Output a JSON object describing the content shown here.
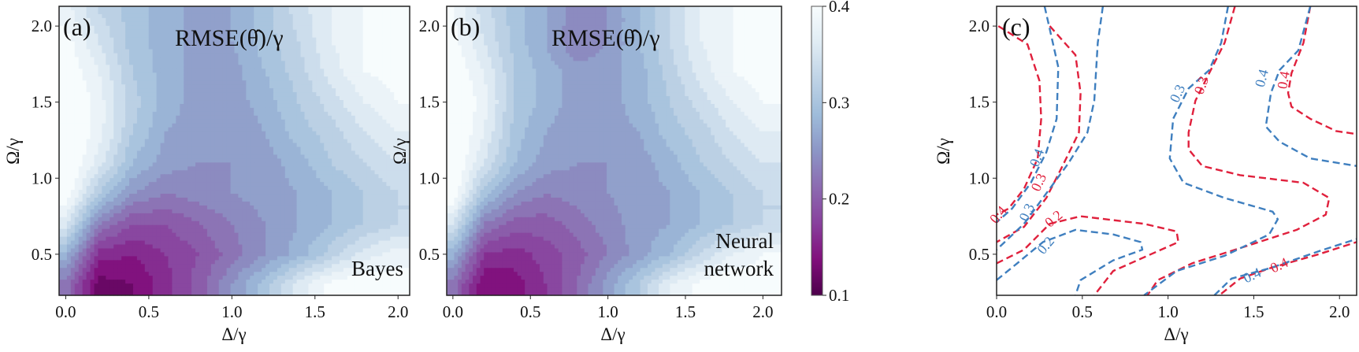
{
  "chart_data": [
    {
      "type": "heatmap",
      "panel_label": "(a)",
      "title": "RMSE(θ̂)/γ",
      "annotation": "Bayes",
      "xlabel": "Δ/γ",
      "ylabel": "Ω/γ",
      "xlim": [
        -0.04,
        2.07
      ],
      "ylim": [
        0.23,
        2.13
      ],
      "xticks": [
        "0.0",
        "0.5",
        "1.0",
        "1.5",
        "2.0"
      ],
      "yticks": [
        "0.5",
        "1.0",
        "1.5",
        "2.0"
      ],
      "x": [
        0,
        0.2,
        0.4,
        0.6,
        0.8,
        1.0,
        1.2,
        1.4,
        1.6,
        1.8,
        2.0
      ],
      "y": [
        2.1,
        1.9,
        1.7,
        1.5,
        1.3,
        1.1,
        0.9,
        0.7,
        0.5,
        0.3
      ],
      "z": [
        [
          0.38,
          0.33,
          0.3,
          0.28,
          0.26,
          0.27,
          0.3,
          0.34,
          0.37,
          0.39,
          0.4
        ],
        [
          0.4,
          0.35,
          0.3,
          0.28,
          0.26,
          0.27,
          0.3,
          0.33,
          0.37,
          0.39,
          0.4
        ],
        [
          0.41,
          0.37,
          0.31,
          0.28,
          0.26,
          0.26,
          0.29,
          0.32,
          0.36,
          0.39,
          0.4
        ],
        [
          0.42,
          0.38,
          0.32,
          0.28,
          0.26,
          0.26,
          0.28,
          0.31,
          0.34,
          0.37,
          0.39
        ],
        [
          0.42,
          0.38,
          0.31,
          0.27,
          0.26,
          0.25,
          0.27,
          0.3,
          0.32,
          0.35,
          0.37
        ],
        [
          0.42,
          0.36,
          0.29,
          0.26,
          0.25,
          0.25,
          0.26,
          0.28,
          0.31,
          0.33,
          0.35
        ],
        [
          0.41,
          0.31,
          0.25,
          0.23,
          0.24,
          0.25,
          0.26,
          0.27,
          0.29,
          0.31,
          0.33
        ],
        [
          0.36,
          0.23,
          0.19,
          0.19,
          0.21,
          0.23,
          0.25,
          0.27,
          0.29,
          0.31,
          0.33
        ],
        [
          0.28,
          0.16,
          0.15,
          0.17,
          0.19,
          0.22,
          0.25,
          0.28,
          0.32,
          0.36,
          0.38
        ],
        [
          0.22,
          0.12,
          0.13,
          0.16,
          0.2,
          0.25,
          0.3,
          0.36,
          0.4,
          0.41,
          0.4
        ]
      ]
    },
    {
      "type": "heatmap",
      "panel_label": "(b)",
      "title": "RMSE(θ̂)/γ",
      "annotation": [
        "Neural",
        "network"
      ],
      "xlabel": "Δ/γ",
      "ylabel": "Ω/γ",
      "xlim": [
        -0.04,
        2.12
      ],
      "ylim": [
        0.23,
        2.13
      ],
      "xticks": [
        "0.0",
        "0.5",
        "1.0",
        "1.5",
        "2.0"
      ],
      "yticks": [
        "0.5",
        "1.0",
        "1.5",
        "2.0"
      ],
      "x": [
        0,
        0.2,
        0.4,
        0.6,
        0.8,
        1.0,
        1.2,
        1.4,
        1.6,
        1.8,
        2.0
      ],
      "y": [
        2.1,
        1.9,
        1.7,
        1.5,
        1.3,
        1.1,
        0.9,
        0.7,
        0.5,
        0.3
      ],
      "z": [
        [
          0.39,
          0.34,
          0.3,
          0.27,
          0.24,
          0.25,
          0.29,
          0.33,
          0.37,
          0.39,
          0.4
        ],
        [
          0.4,
          0.35,
          0.3,
          0.27,
          0.23,
          0.25,
          0.29,
          0.33,
          0.37,
          0.39,
          0.4
        ],
        [
          0.41,
          0.37,
          0.31,
          0.28,
          0.26,
          0.26,
          0.28,
          0.32,
          0.36,
          0.39,
          0.4
        ],
        [
          0.42,
          0.38,
          0.31,
          0.28,
          0.26,
          0.26,
          0.28,
          0.31,
          0.34,
          0.37,
          0.39
        ],
        [
          0.42,
          0.37,
          0.3,
          0.27,
          0.26,
          0.26,
          0.27,
          0.3,
          0.32,
          0.35,
          0.37
        ],
        [
          0.42,
          0.35,
          0.29,
          0.26,
          0.25,
          0.25,
          0.26,
          0.28,
          0.31,
          0.33,
          0.35
        ],
        [
          0.41,
          0.3,
          0.25,
          0.23,
          0.24,
          0.25,
          0.26,
          0.27,
          0.29,
          0.31,
          0.33
        ],
        [
          0.35,
          0.23,
          0.2,
          0.2,
          0.22,
          0.24,
          0.26,
          0.27,
          0.29,
          0.31,
          0.33
        ],
        [
          0.28,
          0.17,
          0.16,
          0.18,
          0.2,
          0.23,
          0.26,
          0.29,
          0.33,
          0.37,
          0.39
        ],
        [
          0.22,
          0.13,
          0.14,
          0.17,
          0.21,
          0.26,
          0.31,
          0.37,
          0.4,
          0.41,
          0.4
        ]
      ]
    },
    {
      "type": "colorbar",
      "range": [
        0.1,
        0.4
      ],
      "ticks": [
        "0.1",
        "0.2",
        "0.3",
        "0.4"
      ],
      "colormap": [
        "#4d004b",
        "#810f7c",
        "#88419d",
        "#8c6bb1",
        "#8c96c6",
        "#9ebcda",
        "#bfd3e6",
        "#e0ecf4",
        "#f7fcfd"
      ]
    },
    {
      "type": "line",
      "panel_label": "(c)",
      "xlabel": "Δ/γ",
      "ylabel": "Ω/γ",
      "xlim": [
        0,
        2.1
      ],
      "ylim": [
        0.23,
        2.13
      ],
      "xticks": [
        "0.0",
        "0.5",
        "1.0",
        "1.5",
        "2.0"
      ],
      "yticks": [
        "0.5",
        "1.0",
        "1.5",
        "2.0"
      ],
      "line_style": "dashed",
      "series": [
        {
          "color": "#e0203c",
          "level": "0.4",
          "points": [
            [
              0.01,
              2.0
            ],
            [
              0.18,
              1.88
            ],
            [
              0.25,
              1.64
            ],
            [
              0.26,
              1.39
            ],
            [
              0.24,
              1.13
            ],
            [
              0.16,
              0.93
            ],
            [
              0.07,
              0.8
            ],
            [
              0,
              0.76
            ]
          ]
        },
        {
          "color": "#e0203c",
          "level": "0.3",
          "points": [
            [
              0.31,
              2.0
            ],
            [
              0.46,
              1.81
            ],
            [
              0.49,
              1.56
            ],
            [
              0.48,
              1.3
            ],
            [
              0.38,
              1.07
            ],
            [
              0.29,
              0.87
            ],
            [
              0.16,
              0.68
            ],
            [
              0,
              0.58
            ]
          ]
        },
        {
          "color": "#e0203c",
          "level": "0.2",
          "points": [
            [
              0,
              0.44
            ],
            [
              0.16,
              0.53
            ],
            [
              0.31,
              0.7
            ],
            [
              0.49,
              0.75
            ],
            [
              0.86,
              0.7
            ],
            [
              1.05,
              0.65
            ],
            [
              1.06,
              0.58
            ],
            [
              0.86,
              0.48
            ],
            [
              0.68,
              0.39
            ],
            [
              0.57,
              0.23
            ]
          ]
        },
        {
          "color": "#e0203c",
          "level": "0.3",
          "points": [
            [
              1.39,
              2.13
            ],
            [
              1.33,
              1.89
            ],
            [
              1.24,
              1.69
            ],
            [
              1.16,
              1.51
            ],
            [
              1.12,
              1.3
            ],
            [
              1.12,
              1.19
            ],
            [
              1.2,
              1.08
            ],
            [
              1.42,
              1.02
            ],
            [
              1.79,
              0.97
            ],
            [
              1.94,
              0.87
            ],
            [
              1.92,
              0.76
            ],
            [
              1.75,
              0.66
            ],
            [
              1.42,
              0.54
            ],
            [
              1.14,
              0.44
            ],
            [
              0.94,
              0.33
            ],
            [
              0.88,
              0.23
            ]
          ]
        },
        {
          "color": "#e0203c",
          "level": "0.4",
          "points": [
            [
              1.83,
              2.13
            ],
            [
              1.79,
              1.89
            ],
            [
              1.72,
              1.69
            ],
            [
              1.7,
              1.56
            ],
            [
              1.72,
              1.47
            ],
            [
              1.83,
              1.39
            ],
            [
              1.98,
              1.31
            ],
            [
              2.1,
              1.29
            ]
          ]
        },
        {
          "color": "#e0203c",
          "level": "0.4",
          "points": [
            [
              1.31,
              0.24
            ],
            [
              1.42,
              0.34
            ],
            [
              1.6,
              0.41
            ],
            [
              1.88,
              0.5
            ],
            [
              2.1,
              0.58
            ]
          ]
        },
        {
          "color": "#3f7fbf",
          "level": "0.4",
          "points": [
            [
              0.28,
              2.13
            ],
            [
              0.31,
              1.98
            ],
            [
              0.36,
              1.73
            ],
            [
              0.35,
              1.39
            ],
            [
              0.29,
              1.17
            ],
            [
              0.2,
              0.97
            ],
            [
              0.09,
              0.8
            ],
            [
              0,
              0.71
            ]
          ]
        },
        {
          "color": "#3f7fbf",
          "level": "0.3",
          "points": [
            [
              0.62,
              2.13
            ],
            [
              0.59,
              1.89
            ],
            [
              0.57,
              1.51
            ],
            [
              0.53,
              1.3
            ],
            [
              0.42,
              1.1
            ],
            [
              0.29,
              0.9
            ],
            [
              0.16,
              0.7
            ],
            [
              0,
              0.53
            ]
          ]
        },
        {
          "color": "#3f7fbf",
          "level": "0.2",
          "points": [
            [
              0,
              0.33
            ],
            [
              0.12,
              0.44
            ],
            [
              0.27,
              0.58
            ],
            [
              0.46,
              0.66
            ],
            [
              0.68,
              0.63
            ],
            [
              0.84,
              0.58
            ],
            [
              0.85,
              0.53
            ],
            [
              0.68,
              0.46
            ],
            [
              0.49,
              0.33
            ],
            [
              0.46,
              0.23
            ]
          ]
        },
        {
          "color": "#3f7fbf",
          "level": "0.3",
          "points": [
            [
              1.35,
              2.13
            ],
            [
              1.31,
              1.89
            ],
            [
              1.24,
              1.71
            ],
            [
              1.12,
              1.59
            ],
            [
              1.03,
              1.39
            ],
            [
              1.01,
              1.13
            ],
            [
              1.09,
              0.97
            ],
            [
              1.33,
              0.87
            ],
            [
              1.61,
              0.78
            ],
            [
              1.64,
              0.73
            ],
            [
              1.59,
              0.63
            ],
            [
              1.33,
              0.49
            ],
            [
              1.05,
              0.39
            ],
            [
              0.86,
              0.23
            ]
          ]
        },
        {
          "color": "#3f7fbf",
          "level": "0.4",
          "points": [
            [
              1.83,
              2.13
            ],
            [
              1.76,
              1.84
            ],
            [
              1.65,
              1.71
            ],
            [
              1.6,
              1.56
            ],
            [
              1.57,
              1.34
            ],
            [
              1.65,
              1.24
            ],
            [
              1.83,
              1.13
            ],
            [
              2.1,
              1.08
            ]
          ]
        },
        {
          "color": "#3f7fbf",
          "level": "0.4",
          "points": [
            [
              1.27,
              0.23
            ],
            [
              1.37,
              0.34
            ],
            [
              1.6,
              0.41
            ],
            [
              1.88,
              0.52
            ],
            [
              2.1,
              0.6
            ]
          ]
        }
      ],
      "contour_labels": [
        {
          "text": "0.4",
          "color": "#e0203c",
          "at": [
            0.03,
            0.74
          ],
          "angle": -50
        },
        {
          "text": "0.3",
          "color": "#e0203c",
          "at": [
            0.27,
            0.96
          ],
          "angle": -65
        },
        {
          "text": "0.2",
          "color": "#e0203c",
          "at": [
            0.35,
            0.71
          ],
          "angle": -40
        },
        {
          "text": "0.3",
          "color": "#e0203c",
          "at": [
            1.22,
            1.6
          ],
          "angle": -70
        },
        {
          "text": "0.4",
          "color": "#e0203c",
          "at": [
            1.7,
            1.64
          ],
          "angle": -80
        },
        {
          "text": "0.4",
          "color": "#e0203c",
          "at": [
            1.66,
            0.4
          ],
          "angle": -25
        },
        {
          "text": "0.4",
          "color": "#3f7fbf",
          "at": [
            0.26,
            1.0
          ],
          "angle": -70
        },
        {
          "text": "0.3",
          "color": "#3f7fbf",
          "at": [
            0.26,
            0.83
          ],
          "angle": -65
        },
        {
          "text": "0.2",
          "color": "#3f7fbf",
          "at": [
            0.27,
            0.58
          ],
          "angle": -50
        },
        {
          "text": "0.3",
          "color": "#3f7fbf",
          "at": [
            1.13,
            1.57
          ],
          "angle": -65
        },
        {
          "text": "0.4",
          "color": "#3f7fbf",
          "at": [
            1.6,
            1.66
          ],
          "angle": -75
        },
        {
          "text": "0.4",
          "color": "#3f7fbf",
          "at": [
            1.58,
            0.37
          ],
          "angle": -25
        }
      ]
    }
  ]
}
